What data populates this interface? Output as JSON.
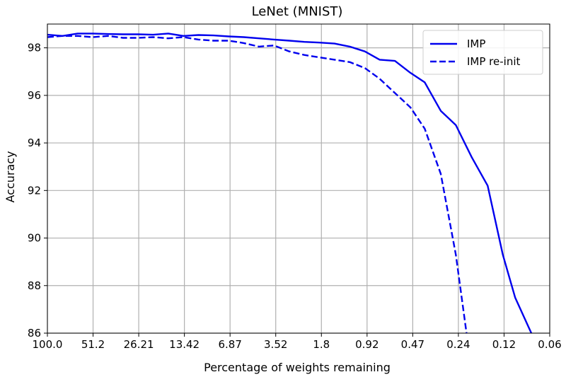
{
  "chart_data": {
    "type": "line",
    "title": "LeNet (MNIST)",
    "xlabel": "Percentage of weights remaining",
    "ylabel": "Accuracy",
    "x_ticks": [
      "100.0",
      "51.2",
      "26.21",
      "13.42",
      "6.87",
      "3.52",
      "1.8",
      "0.92",
      "0.47",
      "0.24",
      "0.12",
      "0.06"
    ],
    "x_scale": "log",
    "y_ticks": [
      "86",
      "88",
      "90",
      "92",
      "94",
      "96",
      "98"
    ],
    "ylim": [
      86,
      99.0
    ],
    "grid": true,
    "legend_position": "top-right",
    "series": [
      {
        "name": "IMP",
        "style": "solid",
        "color": "#0000ee",
        "x": [
          100.0,
          80.0,
          64.0,
          51.2,
          40.96,
          32.77,
          26.21,
          20.97,
          16.78,
          13.42,
          10.74,
          8.59,
          6.87,
          5.5,
          4.4,
          3.52,
          2.81,
          2.25,
          1.8,
          1.44,
          1.15,
          0.92,
          0.74,
          0.59,
          0.47,
          0.38,
          0.3,
          0.24,
          0.19,
          0.15,
          0.12,
          0.1,
          0.0787
        ],
        "y": [
          98.55,
          98.5,
          98.6,
          98.6,
          98.58,
          98.57,
          98.57,
          98.55,
          98.6,
          98.5,
          98.54,
          98.52,
          98.48,
          98.45,
          98.4,
          98.35,
          98.3,
          98.25,
          98.22,
          98.18,
          98.05,
          97.85,
          97.5,
          97.45,
          96.95,
          96.55,
          95.35,
          94.75,
          93.4,
          92.2,
          89.3,
          87.5,
          86.0
        ]
      },
      {
        "name": "IMP re-init",
        "style": "dashed",
        "color": "#0000ee",
        "x": [
          100.0,
          80.0,
          64.0,
          51.2,
          40.96,
          32.77,
          26.21,
          20.97,
          16.78,
          13.42,
          10.74,
          8.59,
          6.87,
          5.5,
          4.4,
          3.52,
          2.81,
          2.25,
          1.8,
          1.44,
          1.15,
          0.92,
          0.74,
          0.59,
          0.47,
          0.38,
          0.3,
          0.24,
          0.205
        ],
        "y": [
          98.45,
          98.5,
          98.5,
          98.45,
          98.5,
          98.42,
          98.42,
          98.45,
          98.4,
          98.45,
          98.35,
          98.3,
          98.3,
          98.2,
          98.05,
          98.1,
          97.85,
          97.7,
          97.6,
          97.5,
          97.4,
          97.15,
          96.7,
          96.1,
          95.5,
          94.6,
          92.7,
          89.3,
          86.0
        ]
      }
    ]
  }
}
